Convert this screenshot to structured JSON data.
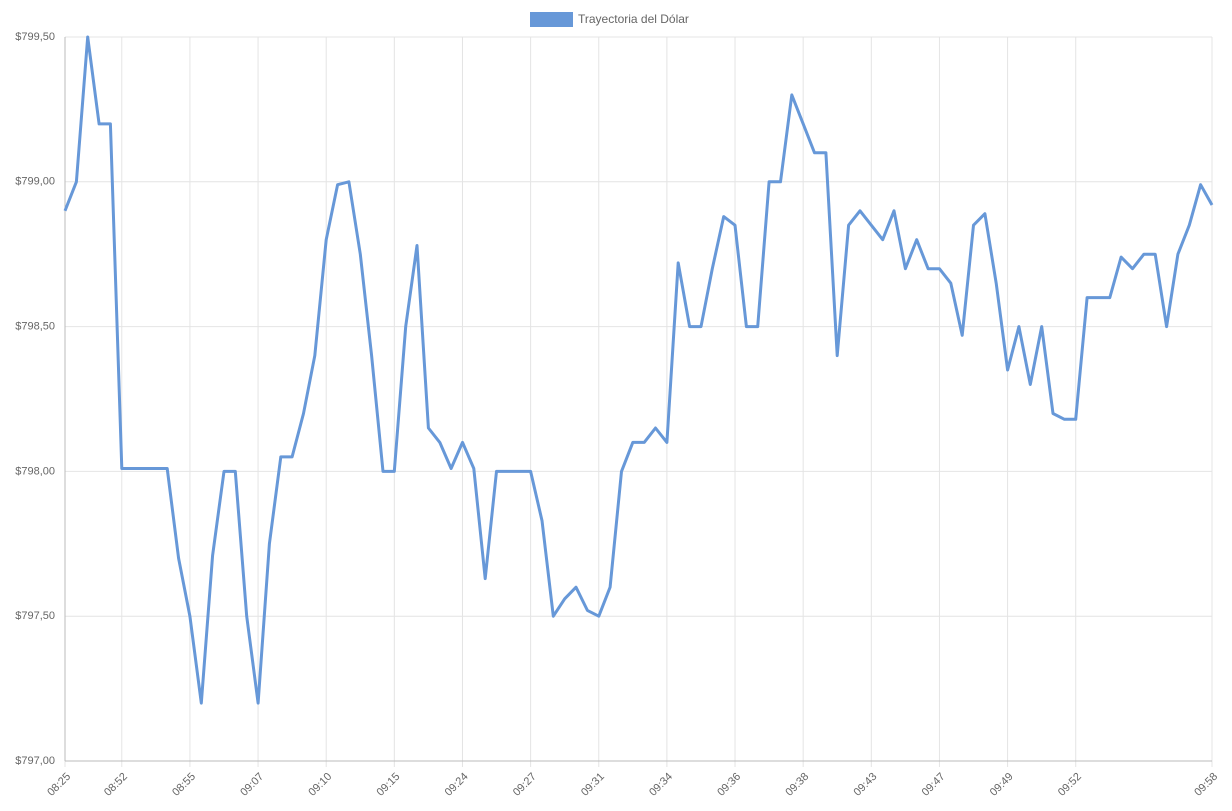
{
  "chart_data": {
    "type": "line",
    "legend": "top",
    "series": [
      {
        "name": "Trayectoria del Dólar",
        "color": "#6798d8",
        "values": [
          798.9,
          799.0,
          799.5,
          799.2,
          799.2,
          798.01,
          798.01,
          798.01,
          798.01,
          798.01,
          797.7,
          797.5,
          797.2,
          797.71,
          798.0,
          798.0,
          797.5,
          797.2,
          797.75,
          798.05,
          798.05,
          798.2,
          798.4,
          798.8,
          798.99,
          799.0,
          798.75,
          798.4,
          798.0,
          798.0,
          798.5,
          798.78,
          798.15,
          798.1,
          798.01,
          798.1,
          798.01,
          797.63,
          798.0,
          798.0,
          798.0,
          798.0,
          797.83,
          797.5,
          797.56,
          797.6,
          797.52,
          797.5,
          797.6,
          798.0,
          798.1,
          798.1,
          798.15,
          798.1,
          798.72,
          798.5,
          798.5,
          798.7,
          798.88,
          798.85,
          798.5,
          798.5,
          799.0,
          799.0,
          799.3,
          799.2,
          799.1,
          799.1,
          798.4,
          798.85,
          798.9,
          798.85,
          798.8,
          798.9,
          798.7,
          798.8,
          798.7,
          798.7,
          798.65,
          798.47,
          798.85,
          798.89,
          798.65,
          798.35,
          798.5,
          798.3,
          798.5,
          798.2,
          798.18,
          798.18,
          798.6,
          798.6,
          798.6,
          798.74,
          798.7,
          798.75,
          798.75,
          798.5,
          798.75,
          798.85,
          798.99,
          798.92
        ]
      }
    ],
    "categories": [
      "08:25",
      null,
      null,
      null,
      null,
      "08:52",
      null,
      null,
      null,
      null,
      null,
      "08:55",
      null,
      null,
      null,
      null,
      null,
      "09:07",
      null,
      null,
      null,
      null,
      null,
      "09:10",
      null,
      null,
      null,
      null,
      null,
      "09:15",
      null,
      null,
      null,
      null,
      null,
      "09:24",
      null,
      null,
      null,
      null,
      null,
      "09:27",
      null,
      null,
      null,
      null,
      null,
      "09:31",
      null,
      null,
      null,
      null,
      null,
      "09:34",
      null,
      null,
      null,
      null,
      null,
      "09:36",
      null,
      null,
      null,
      null,
      null,
      "09:38",
      null,
      null,
      null,
      null,
      null,
      "09:43",
      null,
      null,
      null,
      null,
      null,
      "09:47",
      null,
      null,
      null,
      null,
      null,
      "09:49",
      null,
      null,
      null,
      null,
      null,
      "09:52",
      null,
      null,
      null,
      null,
      null,
      null,
      null,
      null,
      null,
      null,
      null,
      "09:58"
    ],
    "ylim": [
      797,
      799.5
    ],
    "yticks": [
      {
        "value": 797,
        "label": "$797,00"
      },
      {
        "value": 797.5,
        "label": "$797,50"
      },
      {
        "value": 798,
        "label": "$798,00"
      },
      {
        "value": 798.5,
        "label": "$798,50"
      },
      {
        "value": 799,
        "label": "$799,00"
      },
      {
        "value": 799.5,
        "label": "$799,50"
      }
    ],
    "grid": true
  }
}
